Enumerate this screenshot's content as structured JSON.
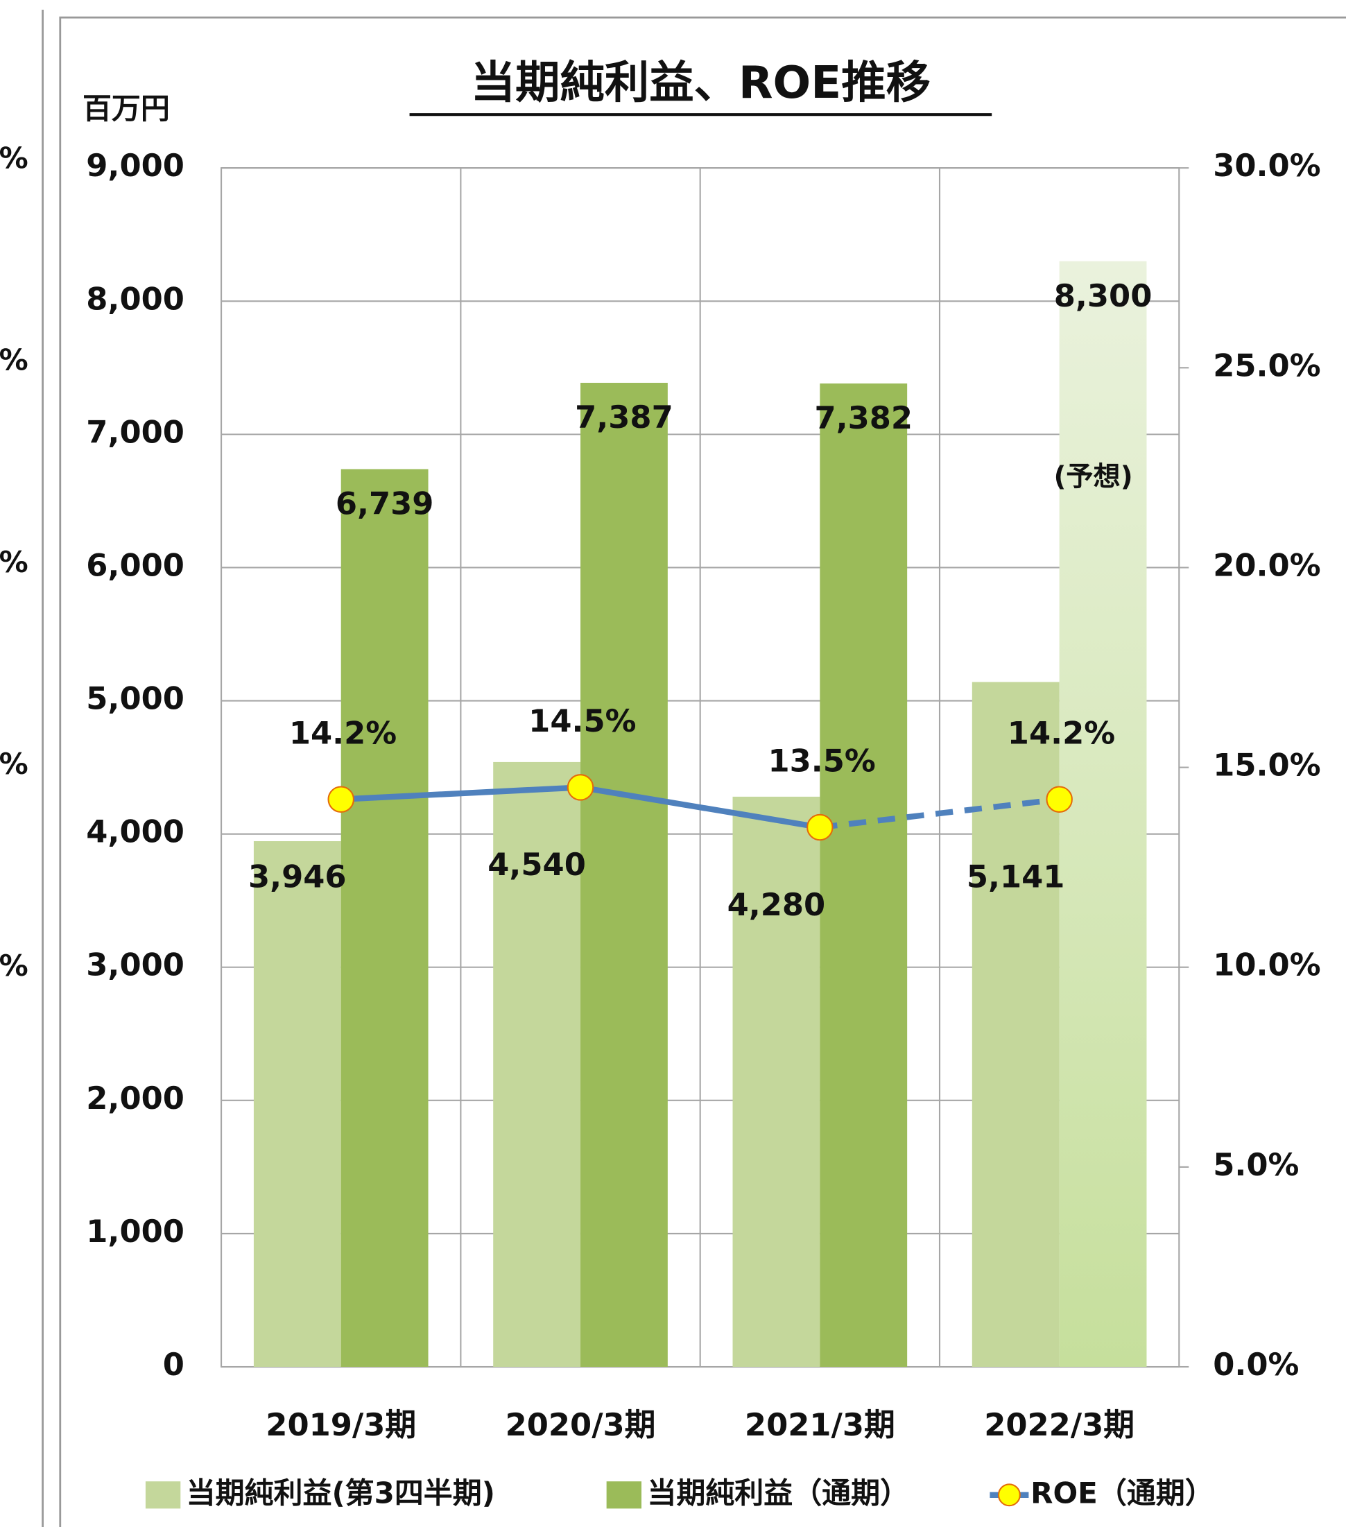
{
  "chart_data": {
    "type": "bar",
    "title": "当期純利益、ROE推移",
    "y_axis_label": "百万円",
    "categories": [
      "2019/3期",
      "2020/3期",
      "2021/3期",
      "2022/3期"
    ],
    "series": [
      {
        "name": "当期純利益(第3四半期)",
        "color": "#c4d79b",
        "values": [
          3946,
          4540,
          4280,
          5141
        ],
        "value_labels": [
          "3,946",
          "4,540",
          "4,280",
          "5,141"
        ]
      },
      {
        "name": "当期純利益（通期）",
        "color": "#9bbb59",
        "values": [
          6739,
          7387,
          7382,
          8300
        ],
        "value_labels": [
          "6,739",
          "7,387",
          "7,382",
          "8,300"
        ],
        "last_bar_gradient": [
          "#eaf2dd",
          "#c6df9c"
        ]
      },
      {
        "name": "ROE（通期）",
        "type": "line",
        "axis": "y2",
        "color": "#4f81bd",
        "marker_color": "#ffff00",
        "marker_edge": "#e46c0a",
        "values": [
          14.2,
          14.5,
          13.5,
          14.2
        ],
        "value_labels": [
          "14.2%",
          "14.5%",
          "13.5%",
          "14.2%"
        ],
        "last_segment_style": "dashed"
      }
    ],
    "annotations": [
      "(予想)"
    ],
    "ylim": [
      0,
      9000
    ],
    "yticks": [
      0,
      {
        "value": 1000,
        "label": "1,000"
      },
      {
        "value": 2000,
        "label": "2,000"
      },
      {
        "value": 3000,
        "label": "3,000"
      },
      {
        "value": 4000,
        "label": "4,000"
      },
      {
        "value": 5000,
        "label": "5,000"
      },
      {
        "value": 6000,
        "label": "6,000"
      },
      {
        "value": 7000,
        "label": "7,000"
      },
      {
        "value": 8000,
        "label": "8,000"
      },
      {
        "value": 9000,
        "label": "9,000"
      }
    ],
    "y2lim": [
      0,
      30
    ],
    "y2ticks": [
      {
        "value": 0,
        "label": "0.0%"
      },
      {
        "value": 5,
        "label": "5.0%"
      },
      {
        "value": 10,
        "label": "10.0%"
      },
      {
        "value": 15,
        "label": "15.0%"
      },
      {
        "value": 20,
        "label": "20.0%"
      },
      {
        "value": 25,
        "label": "25.0%"
      },
      {
        "value": 30,
        "label": "30.0%"
      }
    ],
    "grid": true,
    "legend": "bottom"
  },
  "left_panel_fragments": [
    "%",
    "%",
    "%",
    "%",
    "%"
  ]
}
